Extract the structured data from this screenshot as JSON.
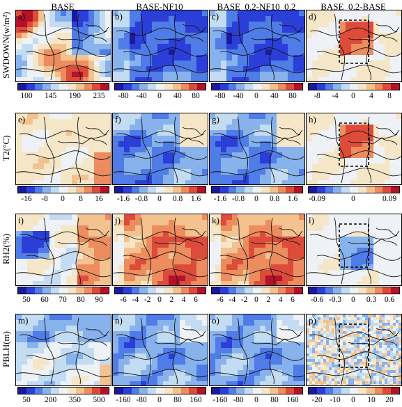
{
  "columns": [
    "BASE",
    "BASE-NF10",
    "BASE_0.2-NF10_0.2",
    "BASE_0.2-BASE"
  ],
  "rows": [
    {
      "label": "SWDOWN(w/m²)",
      "panels": [
        "a)",
        "b)",
        "c)",
        "d)"
      ],
      "ticks": [
        [
          "100",
          "145",
          "190",
          "235"
        ],
        [
          "-80",
          "-40",
          "0",
          "40",
          "80"
        ],
        [
          "-80",
          "-40",
          "0",
          "40",
          "80"
        ],
        [
          "-8",
          "-4",
          "0",
          "4",
          "8"
        ]
      ]
    },
    {
      "label": "T2(°C)",
      "panels": [
        "e)",
        "f)",
        "g)",
        "h)"
      ],
      "ticks": [
        [
          "-16",
          "-8",
          "0",
          "8",
          "16"
        ],
        [
          "-1.6",
          "-0.8",
          "0",
          "0.8",
          "1.6"
        ],
        [
          "-1.6",
          "-0.8",
          "0",
          "0.8",
          "1.6"
        ],
        [
          "-0.09",
          "0",
          "0.09"
        ]
      ]
    },
    {
      "label": "RH2(%)",
      "panels": [
        "i)",
        "j)",
        "k)",
        "l)"
      ],
      "ticks": [
        [
          "50",
          "60",
          "70",
          "80",
          "90"
        ],
        [
          "-6",
          "-4",
          "-2",
          "0",
          "2",
          "4",
          "6"
        ],
        [
          "-6",
          "-4",
          "-2",
          "0",
          "2",
          "4",
          "6"
        ],
        [
          "-0.6",
          "-0.3",
          "0",
          "0.3",
          "0.6"
        ]
      ]
    },
    {
      "label": "PBLH(m)",
      "panels": [
        "m)",
        "n)",
        "o)",
        "p)"
      ],
      "ticks": [
        [
          "50",
          "200",
          "350",
          "500"
        ],
        [
          "-160",
          "-80",
          "0",
          "80",
          "160"
        ],
        [
          "-160",
          "-80",
          "0",
          "80",
          "160"
        ],
        [
          "-20",
          "-10",
          "0",
          "10",
          "20"
        ]
      ]
    }
  ],
  "colors": {
    "colormap": [
      "#1a1a9c",
      "#2b3fd8",
      "#4f7ce6",
      "#88b2ec",
      "#c3dcf2",
      "#eef2f6",
      "#f6e6c8",
      "#f3c28f",
      "#ec8c5f",
      "#dd4b3a",
      "#b3122a"
    ],
    "background": "#ffffff",
    "box": "#000000"
  },
  "panel_fields": [
    [
      "mixed-red-west",
      "deep-blue",
      "deep-blue",
      "pale-red-center"
    ],
    [
      "pale-warm",
      "blue-west",
      "blue-west",
      "pale-red-center"
    ],
    [
      "red-east",
      "red-strong",
      "red-strong",
      "pale-blue-center"
    ],
    [
      "blue-north",
      "blue-mixed",
      "blue-mixed",
      "noisy"
    ]
  ]
}
